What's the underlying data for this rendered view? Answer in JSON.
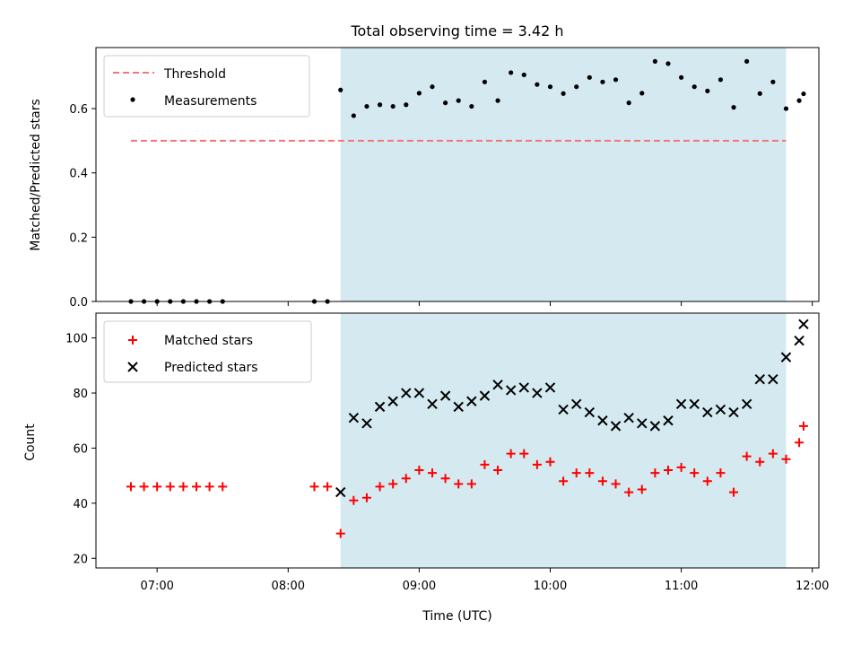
{
  "chart_data": [
    {
      "type": "scatter",
      "title": "Total observing time = 3.42 h",
      "xlabel": "",
      "ylabel": "Matched/Predicted stars",
      "xlim": [
        "06:32",
        "12:03"
      ],
      "ylim": [
        0,
        0.79
      ],
      "yticks": [
        0.0,
        0.2,
        0.4,
        0.6
      ],
      "ytick_labels": [
        "0.0",
        "0.2",
        "0.4",
        "0.6"
      ],
      "shaded_region": {
        "start": "08:24",
        "end": "11:48",
        "color": "#d4eaf0"
      },
      "legend": {
        "placement": "top-left",
        "entries": [
          "Threshold",
          "Measurements"
        ]
      },
      "threshold": {
        "name": "Threshold",
        "value": 0.5,
        "start": "06:48",
        "end": "11:48",
        "color": "#f27777",
        "style": "dashed"
      },
      "series": [
        {
          "name": "Measurements",
          "color": "#000000",
          "marker": "dot",
          "x": [
            "06:48",
            "06:54",
            "07:00",
            "07:06",
            "07:12",
            "07:18",
            "07:24",
            "07:30",
            "08:12",
            "08:18",
            "08:24",
            "08:30",
            "08:36",
            "08:42",
            "08:48",
            "08:54",
            "09:00",
            "09:06",
            "09:12",
            "09:18",
            "09:24",
            "09:30",
            "09:36",
            "09:42",
            "09:48",
            "09:54",
            "10:00",
            "10:06",
            "10:12",
            "10:18",
            "10:24",
            "10:30",
            "10:36",
            "10:42",
            "10:48",
            "10:54",
            "11:00",
            "11:06",
            "11:12",
            "11:18",
            "11:24",
            "11:30",
            "11:36",
            "11:42",
            "11:48",
            "11:54",
            "11:56"
          ],
          "y": [
            0.0,
            0.0,
            0.0,
            0.0,
            0.0,
            0.0,
            0.0,
            0.0,
            0.0,
            0.0,
            0.658,
            0.578,
            0.607,
            0.612,
            0.607,
            0.612,
            0.648,
            0.668,
            0.618,
            0.625,
            0.607,
            0.683,
            0.625,
            0.712,
            0.705,
            0.675,
            0.668,
            0.647,
            0.668,
            0.697,
            0.683,
            0.69,
            0.618,
            0.648,
            0.747,
            0.74,
            0.697,
            0.668,
            0.655,
            0.69,
            0.604,
            0.747,
            0.647,
            0.683,
            0.6,
            0.625,
            0.646
          ]
        }
      ]
    },
    {
      "type": "scatter",
      "title": "",
      "xlabel": "Time (UTC)",
      "ylabel": "Count",
      "xlim": [
        "06:32",
        "12:03"
      ],
      "ylim": [
        16.5,
        109
      ],
      "xticks": [
        "07:00",
        "08:00",
        "09:00",
        "10:00",
        "11:00",
        "12:00"
      ],
      "yticks": [
        20,
        40,
        60,
        80,
        100
      ],
      "ytick_labels": [
        "20",
        "40",
        "60",
        "80",
        "100"
      ],
      "shaded_region": {
        "start": "08:24",
        "end": "11:48",
        "color": "#d4eaf0"
      },
      "legend": {
        "placement": "top-left",
        "entries": [
          "Matched stars",
          "Predicted stars"
        ]
      },
      "series": [
        {
          "name": "Matched stars",
          "color": "#ff0000",
          "marker": "plus",
          "x": [
            "06:48",
            "06:54",
            "07:00",
            "07:06",
            "07:12",
            "07:18",
            "07:24",
            "07:30",
            "08:12",
            "08:18",
            "08:24",
            "08:30",
            "08:36",
            "08:42",
            "08:48",
            "08:54",
            "09:00",
            "09:06",
            "09:12",
            "09:18",
            "09:24",
            "09:30",
            "09:36",
            "09:42",
            "09:48",
            "09:54",
            "10:00",
            "10:06",
            "10:12",
            "10:18",
            "10:24",
            "10:30",
            "10:36",
            "10:42",
            "10:48",
            "10:54",
            "11:00",
            "11:06",
            "11:12",
            "11:18",
            "11:24",
            "11:30",
            "11:36",
            "11:42",
            "11:48",
            "11:54",
            "11:56"
          ],
          "y": [
            46,
            46,
            46,
            46,
            46,
            46,
            46,
            46,
            46,
            46,
            29,
            41,
            42,
            46,
            47,
            49,
            52,
            51,
            49,
            47,
            47,
            54,
            52,
            58,
            58,
            54,
            55,
            48,
            51,
            51,
            48,
            47,
            44,
            45,
            51,
            52,
            53,
            51,
            48,
            51,
            44,
            57,
            55,
            58,
            56,
            62,
            68
          ]
        },
        {
          "name": "Predicted stars",
          "color": "#000000",
          "marker": "x",
          "x": [
            "08:24",
            "08:30",
            "08:36",
            "08:42",
            "08:48",
            "08:54",
            "09:00",
            "09:06",
            "09:12",
            "09:18",
            "09:24",
            "09:30",
            "09:36",
            "09:42",
            "09:48",
            "09:54",
            "10:00",
            "10:06",
            "10:12",
            "10:18",
            "10:24",
            "10:30",
            "10:36",
            "10:42",
            "10:48",
            "10:54",
            "11:00",
            "11:06",
            "11:12",
            "11:18",
            "11:24",
            "11:30",
            "11:36",
            "11:42",
            "11:48",
            "11:54",
            "11:56"
          ],
          "y": [
            44,
            71,
            69,
            75,
            77,
            80,
            80,
            76,
            79,
            75,
            77,
            79,
            83,
            81,
            82,
            80,
            82,
            74,
            76,
            73,
            70,
            68,
            71,
            69,
            68,
            70,
            76,
            76,
            73,
            74,
            73,
            76,
            85,
            85,
            93,
            99,
            105
          ]
        }
      ]
    }
  ]
}
